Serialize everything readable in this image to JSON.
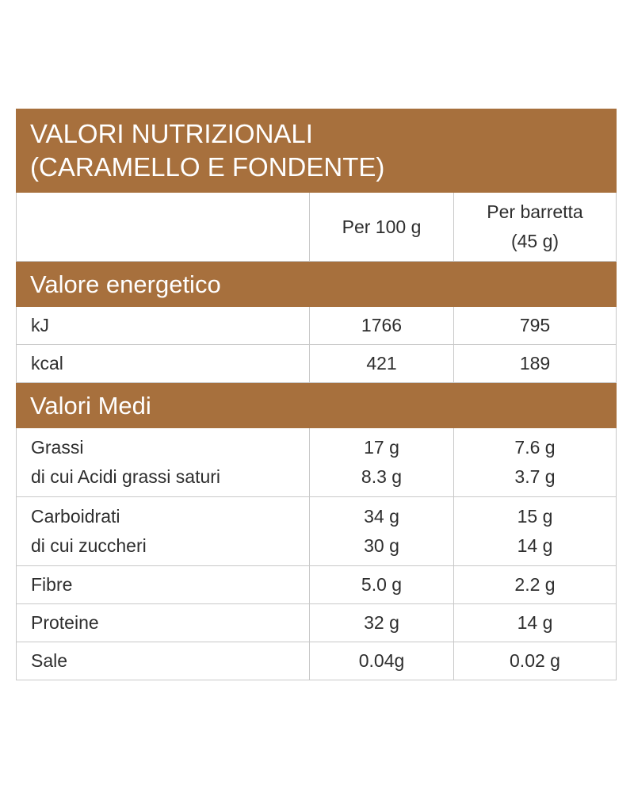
{
  "title": [
    "VALORI NUTRIZIONALI",
    "(CARAMELLO E FONDENTE)"
  ],
  "columns": [
    [
      "Per 100 g"
    ],
    [
      "Per barretta",
      "(45 g)"
    ]
  ],
  "sections": [
    {
      "title": "Valore energetico",
      "rows": [
        [
          [
            "kJ"
          ],
          [
            "1766"
          ],
          [
            "795"
          ]
        ],
        [
          [
            "kcal"
          ],
          [
            "421"
          ],
          [
            "189"
          ]
        ]
      ]
    },
    {
      "title": "Valori Medi",
      "rows": [
        [
          [
            "Grassi",
            "di cui Acidi grassi saturi"
          ],
          [
            "17 g",
            "8.3 g"
          ],
          [
            "7.6 g",
            "3.7 g"
          ]
        ],
        [
          [
            "Carboidrati",
            "di cui zuccheri"
          ],
          [
            "34 g",
            "30 g"
          ],
          [
            "15 g",
            "14 g"
          ]
        ],
        [
          [
            "Fibre"
          ],
          [
            "5.0 g"
          ],
          [
            "2.2 g"
          ]
        ],
        [
          [
            "Proteine"
          ],
          [
            "32 g"
          ],
          [
            "14 g"
          ]
        ],
        [
          [
            "Sale"
          ],
          [
            "0.04g"
          ],
          [
            "0.02 g"
          ]
        ]
      ]
    }
  ]
}
